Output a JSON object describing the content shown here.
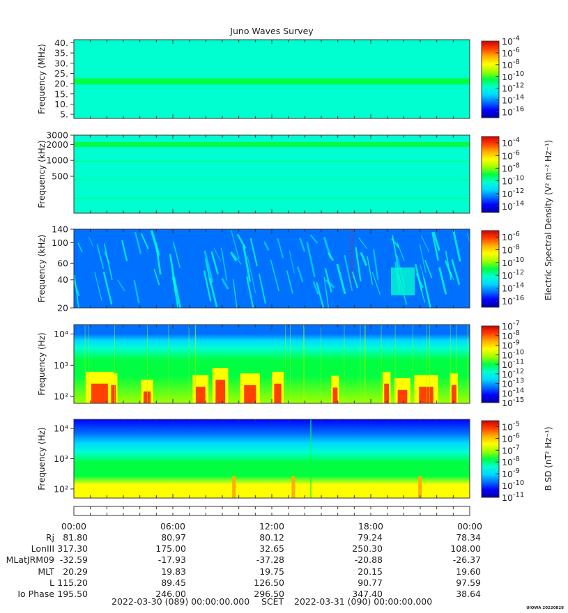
{
  "title": "Juno Waves Survey",
  "colors": {
    "map": [
      "#0000a0",
      "#0000ff",
      "#0070ff",
      "#00d8ff",
      "#00ffd0",
      "#00ff40",
      "#a0ff00",
      "#ffff00",
      "#ffb000",
      "#ff4000",
      "#d00000"
    ]
  },
  "chart_data": [
    {
      "type": "heatmap",
      "title": "",
      "ylabel": "Frequency (MHz)",
      "y_ticks": [
        "40.",
        "35.",
        "30.",
        "25.",
        "20.",
        "15.",
        "10.",
        "5."
      ],
      "y_tick_values": [
        40,
        35,
        30,
        25,
        20,
        15,
        10,
        5
      ],
      "ylim": [
        3,
        41.5
      ],
      "y_scale": "linear",
      "colorbar": {
        "ticks": [
          "-4",
          "-6",
          "-8",
          "-10",
          "-12",
          "-14",
          "-16"
        ],
        "range": [
          -17,
          -4
        ],
        "label": ""
      },
      "background_level": 0.42,
      "features": [
        {
          "kind": "band",
          "y": 21,
          "width": 1.6,
          "level": 0.55
        }
      ]
    },
    {
      "type": "heatmap",
      "title": "",
      "ylabel": "Frequency (kHz)",
      "y_ticks": [
        "3000",
        "2000",
        "1000",
        "500"
      ],
      "y_tick_values": [
        3000,
        2000,
        1000,
        500
      ],
      "ylim": [
        100,
        3000
      ],
      "y_scale": "log",
      "colorbar": {
        "ticks": [
          "-4",
          "-6",
          "-8",
          "-10",
          "-12",
          "-14"
        ],
        "range": [
          -15,
          -3
        ],
        "label": "Electric Spectral Density (V² m⁻² Hz⁻¹)"
      },
      "background_level": 0.45,
      "features": [
        {
          "kind": "band",
          "y": 2000,
          "width": 0.06,
          "level": 0.56
        }
      ]
    },
    {
      "type": "heatmap",
      "title": "",
      "ylabel": "Frequency (kHz)",
      "y_ticks": [
        "140",
        "100",
        "60",
        "40",
        "20"
      ],
      "y_tick_values": [
        140,
        100,
        60,
        40,
        20
      ],
      "ylim": [
        20,
        140
      ],
      "y_scale": "log",
      "colorbar": {
        "ticks": [
          "-6",
          "-8",
          "-10",
          "-12",
          "-14",
          "-16"
        ],
        "range": [
          -17,
          -5
        ],
        "label": ""
      },
      "background_level": 0.22,
      "features": [
        {
          "kind": "streaks",
          "level": 0.35
        }
      ]
    },
    {
      "type": "heatmap",
      "title": "",
      "ylabel": "Frequency (Hz)",
      "y_ticks": [
        "10⁴",
        "10³",
        "10²"
      ],
      "y_tick_values": [
        10000,
        1000,
        100
      ],
      "ylim": [
        60,
        20000
      ],
      "y_scale": "log",
      "colorbar": {
        "ticks": [
          "-7",
          "-8",
          "-9",
          "-10",
          "-11",
          "-12",
          "-13",
          "-14",
          "-15"
        ],
        "range": [
          -15,
          -7
        ],
        "label": ""
      },
      "background_level": 0.45,
      "features": [
        {
          "kind": "gradient_bursts"
        }
      ]
    },
    {
      "type": "heatmap",
      "title": "",
      "ylabel": "Frequency (Hz)",
      "y_ticks": [
        "10⁴",
        "10³",
        "10²"
      ],
      "y_tick_values": [
        10000,
        1000,
        100
      ],
      "ylim": [
        50,
        20000
      ],
      "y_scale": "log",
      "colorbar": {
        "ticks": [
          "-5",
          "-6",
          "-7",
          "-8",
          "-9",
          "-10",
          "-11"
        ],
        "range": [
          -11,
          -4.5
        ],
        "label": "B SD (nT² Hz⁻¹)"
      },
      "background_level": 0.5,
      "features": [
        {
          "kind": "gradient_magnetic"
        }
      ]
    }
  ],
  "x_axis": {
    "tick_labels": [
      "00:00",
      "06:00",
      "12:00",
      "18:00",
      "00:00"
    ],
    "hours": [
      0,
      6,
      12,
      18,
      24
    ]
  },
  "ephemeris": [
    {
      "label": "Rj",
      "values": [
        "81.80",
        "80.97",
        "80.12",
        "79.24",
        "78.34"
      ]
    },
    {
      "label": "LonIII",
      "values": [
        "317.30",
        "175.00",
        "32.65",
        "250.30",
        "108.00"
      ]
    },
    {
      "label": "MLatJRM09",
      "values": [
        "-32.59",
        "-17.93",
        "-37.28",
        "-20.88",
        "-26.37"
      ]
    },
    {
      "label": "MLT",
      "values": [
        "20.29",
        "19.83",
        "19.75",
        "20.15",
        "19.60"
      ]
    },
    {
      "label": "L",
      "values": [
        "115.20",
        "89.45",
        "126.50",
        "90.77",
        "97.59"
      ]
    },
    {
      "label": "Io Phase",
      "values": [
        "195.50",
        "246.00",
        "296.50",
        "347.40",
        "38.64"
      ]
    }
  ],
  "footer": {
    "start": "2022-03-30 (089) 00:00:00.000",
    "scet": "SCET",
    "end": "2022-03-31 (090) 00:00:00.000"
  },
  "stamp": "UIOWA 20220828"
}
